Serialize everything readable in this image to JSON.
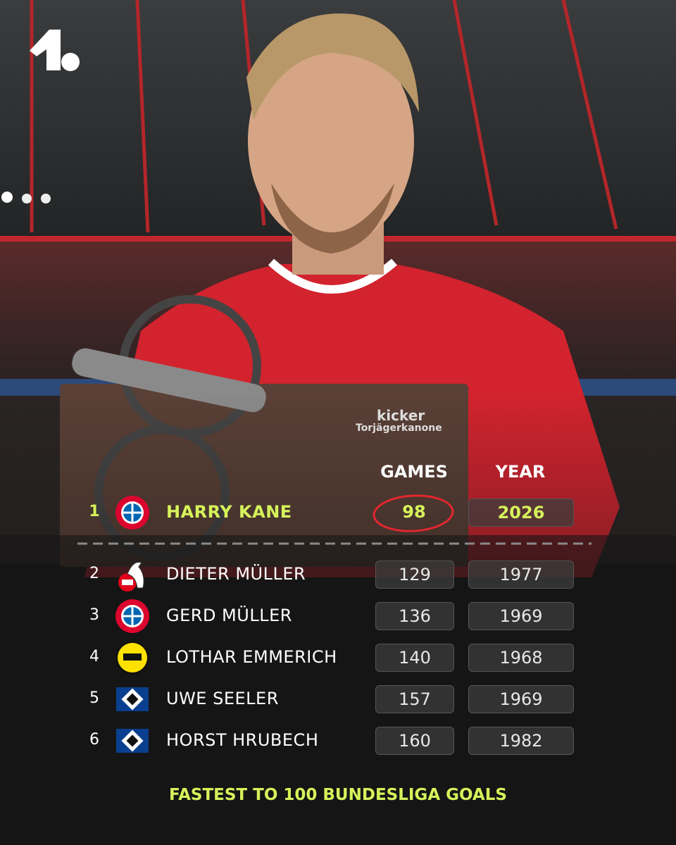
{
  "trophy": {
    "brand": "kicker",
    "name": "Torjägerkanone"
  },
  "table": {
    "headers": [
      "GAMES",
      "YEAR"
    ],
    "rows": [
      {
        "rank": 1,
        "club": "bayern",
        "name": "HARRY KANE",
        "games": 98,
        "year": 2026
      },
      {
        "rank": 2,
        "club": "koeln",
        "name": "DIETER MÜLLER",
        "games": 129,
        "year": 1977
      },
      {
        "rank": 3,
        "club": "bayern",
        "name": "GERD MÜLLER",
        "games": 136,
        "year": 1969
      },
      {
        "rank": 4,
        "club": "bvb",
        "name": "LOTHAR EMMERICH",
        "games": 140,
        "year": 1968
      },
      {
        "rank": 5,
        "club": "hsv",
        "name": "UWE SEELER",
        "games": 157,
        "year": 1969
      },
      {
        "rank": 6,
        "club": "hsv",
        "name": "HORST HRUBECH",
        "games": 160,
        "year": 1982
      }
    ]
  },
  "footer": {
    "title": "FASTEST TO 100 BUNDESLIGA GOALS"
  }
}
